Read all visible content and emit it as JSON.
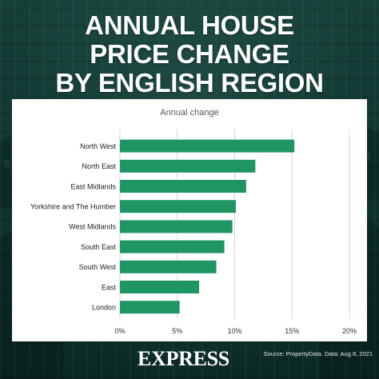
{
  "headline": {
    "line1": "ANNUAL HOUSE",
    "line2": "PRICE CHANGE",
    "line3": "BY ENGLISH REGION"
  },
  "brand": "EXPRESS",
  "source": "Source: PropertyData. Data: Aug 8, 2021",
  "colors": {
    "bar": "#1e9563",
    "grid": "#d6d6d6",
    "background": "#0e2f2a"
  },
  "chart_data": {
    "type": "bar",
    "orientation": "horizontal",
    "title": "Annual change",
    "categories": [
      "North West",
      "North East",
      "East Midlands",
      "Yorkshire and The Humber",
      "West Midlands",
      "South East",
      "South West",
      "East",
      "London"
    ],
    "values": [
      15.2,
      11.8,
      11.0,
      10.1,
      9.8,
      9.1,
      8.4,
      6.9,
      5.2
    ],
    "xlim": [
      0,
      20
    ],
    "ticks": [
      0,
      5,
      10,
      15,
      20
    ],
    "tick_labels": [
      "0%",
      "5%",
      "10%",
      "15%",
      "20%"
    ],
    "grid": true
  }
}
